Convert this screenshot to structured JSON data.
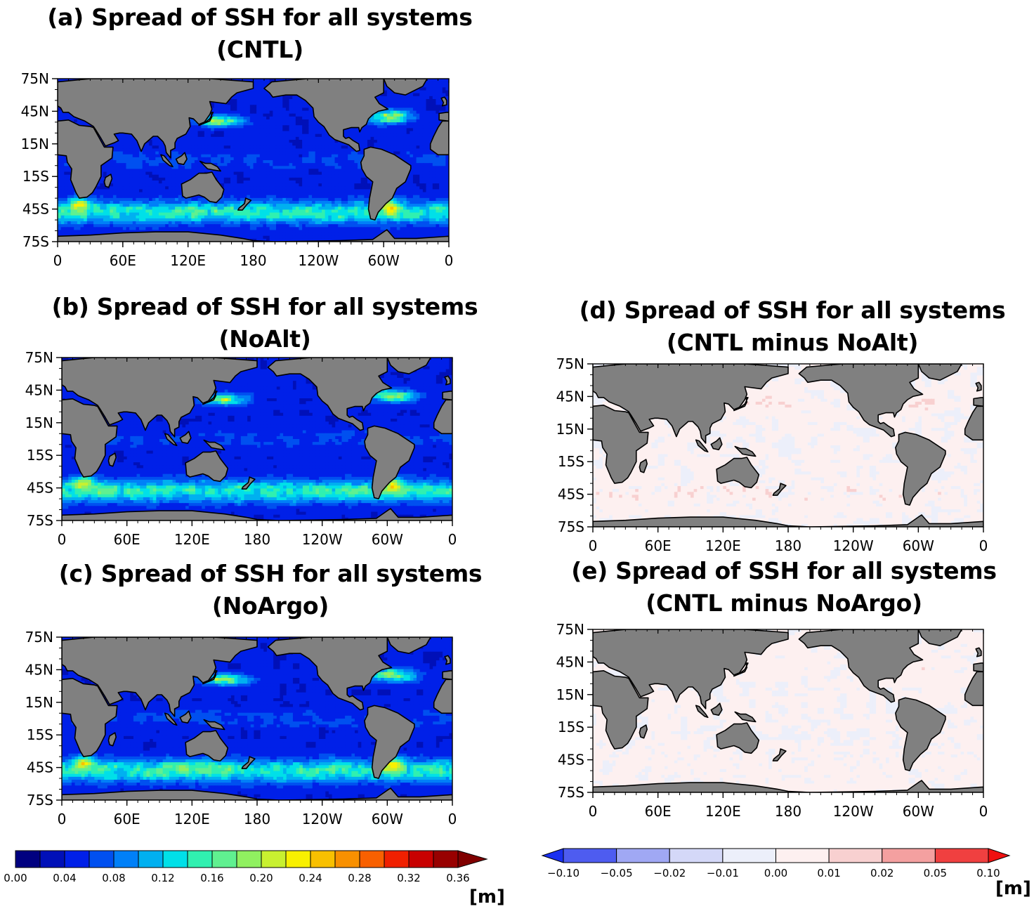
{
  "axes": {
    "lat_ticks": [
      "75N",
      "45N",
      "15N",
      "15S",
      "45S",
      "75S"
    ],
    "lon_ticks": [
      "0",
      "60E",
      "120E",
      "180",
      "120W",
      "60W",
      "0"
    ]
  },
  "panels": [
    {
      "id": "a",
      "title_line1": "(a) Spread of SSH for all systems",
      "title_line2": "(CNTL)",
      "scale": "spread"
    },
    {
      "id": "b",
      "title_line1": "(b) Spread of SSH for all systems",
      "title_line2": "(NoAlt)",
      "scale": "spread"
    },
    {
      "id": "c",
      "title_line1": "(c) Spread of SSH for all systems",
      "title_line2": "(NoArgo)",
      "scale": "spread"
    },
    {
      "id": "d",
      "title_line1": "(d) Spread of SSH for all systems",
      "title_line2": "(CNTL minus NoAlt)",
      "scale": "diff"
    },
    {
      "id": "e",
      "title_line1": "(e) Spread of SSH for all systems",
      "title_line2": "(CNTL minus NoArgo)",
      "scale": "diff"
    }
  ],
  "colorbars": {
    "spread": {
      "labels": [
        "0.00",
        "0.04",
        "0.08",
        "0.12",
        "0.16",
        "0.20",
        "0.24",
        "0.28",
        "0.32",
        "0.36"
      ],
      "colors": [
        "#000080",
        "#0010b8",
        "#0020e8",
        "#0050f0",
        "#0080f8",
        "#00b0f0",
        "#00e0e8",
        "#30f0b0",
        "#60f090",
        "#90f060",
        "#c8f030",
        "#f8f000",
        "#f8c000",
        "#f89000",
        "#f86000",
        "#f02000",
        "#c80000",
        "#980000",
        "#800000"
      ],
      "unit": "[m]"
    },
    "diff": {
      "labels": [
        "-0.10",
        "-0.05",
        "-0.02",
        "-0.01",
        "0.00",
        "0.01",
        "0.02",
        "0.05",
        "0.10"
      ],
      "colors": [
        "#1a30f0",
        "#4e5cf0",
        "#a0a8f4",
        "#d4d8f8",
        "#eceffa",
        "#fdf0f0",
        "#f8d0d0",
        "#f4a0a0",
        "#f04040",
        "#f01010"
      ],
      "unit": "[m]"
    }
  }
}
